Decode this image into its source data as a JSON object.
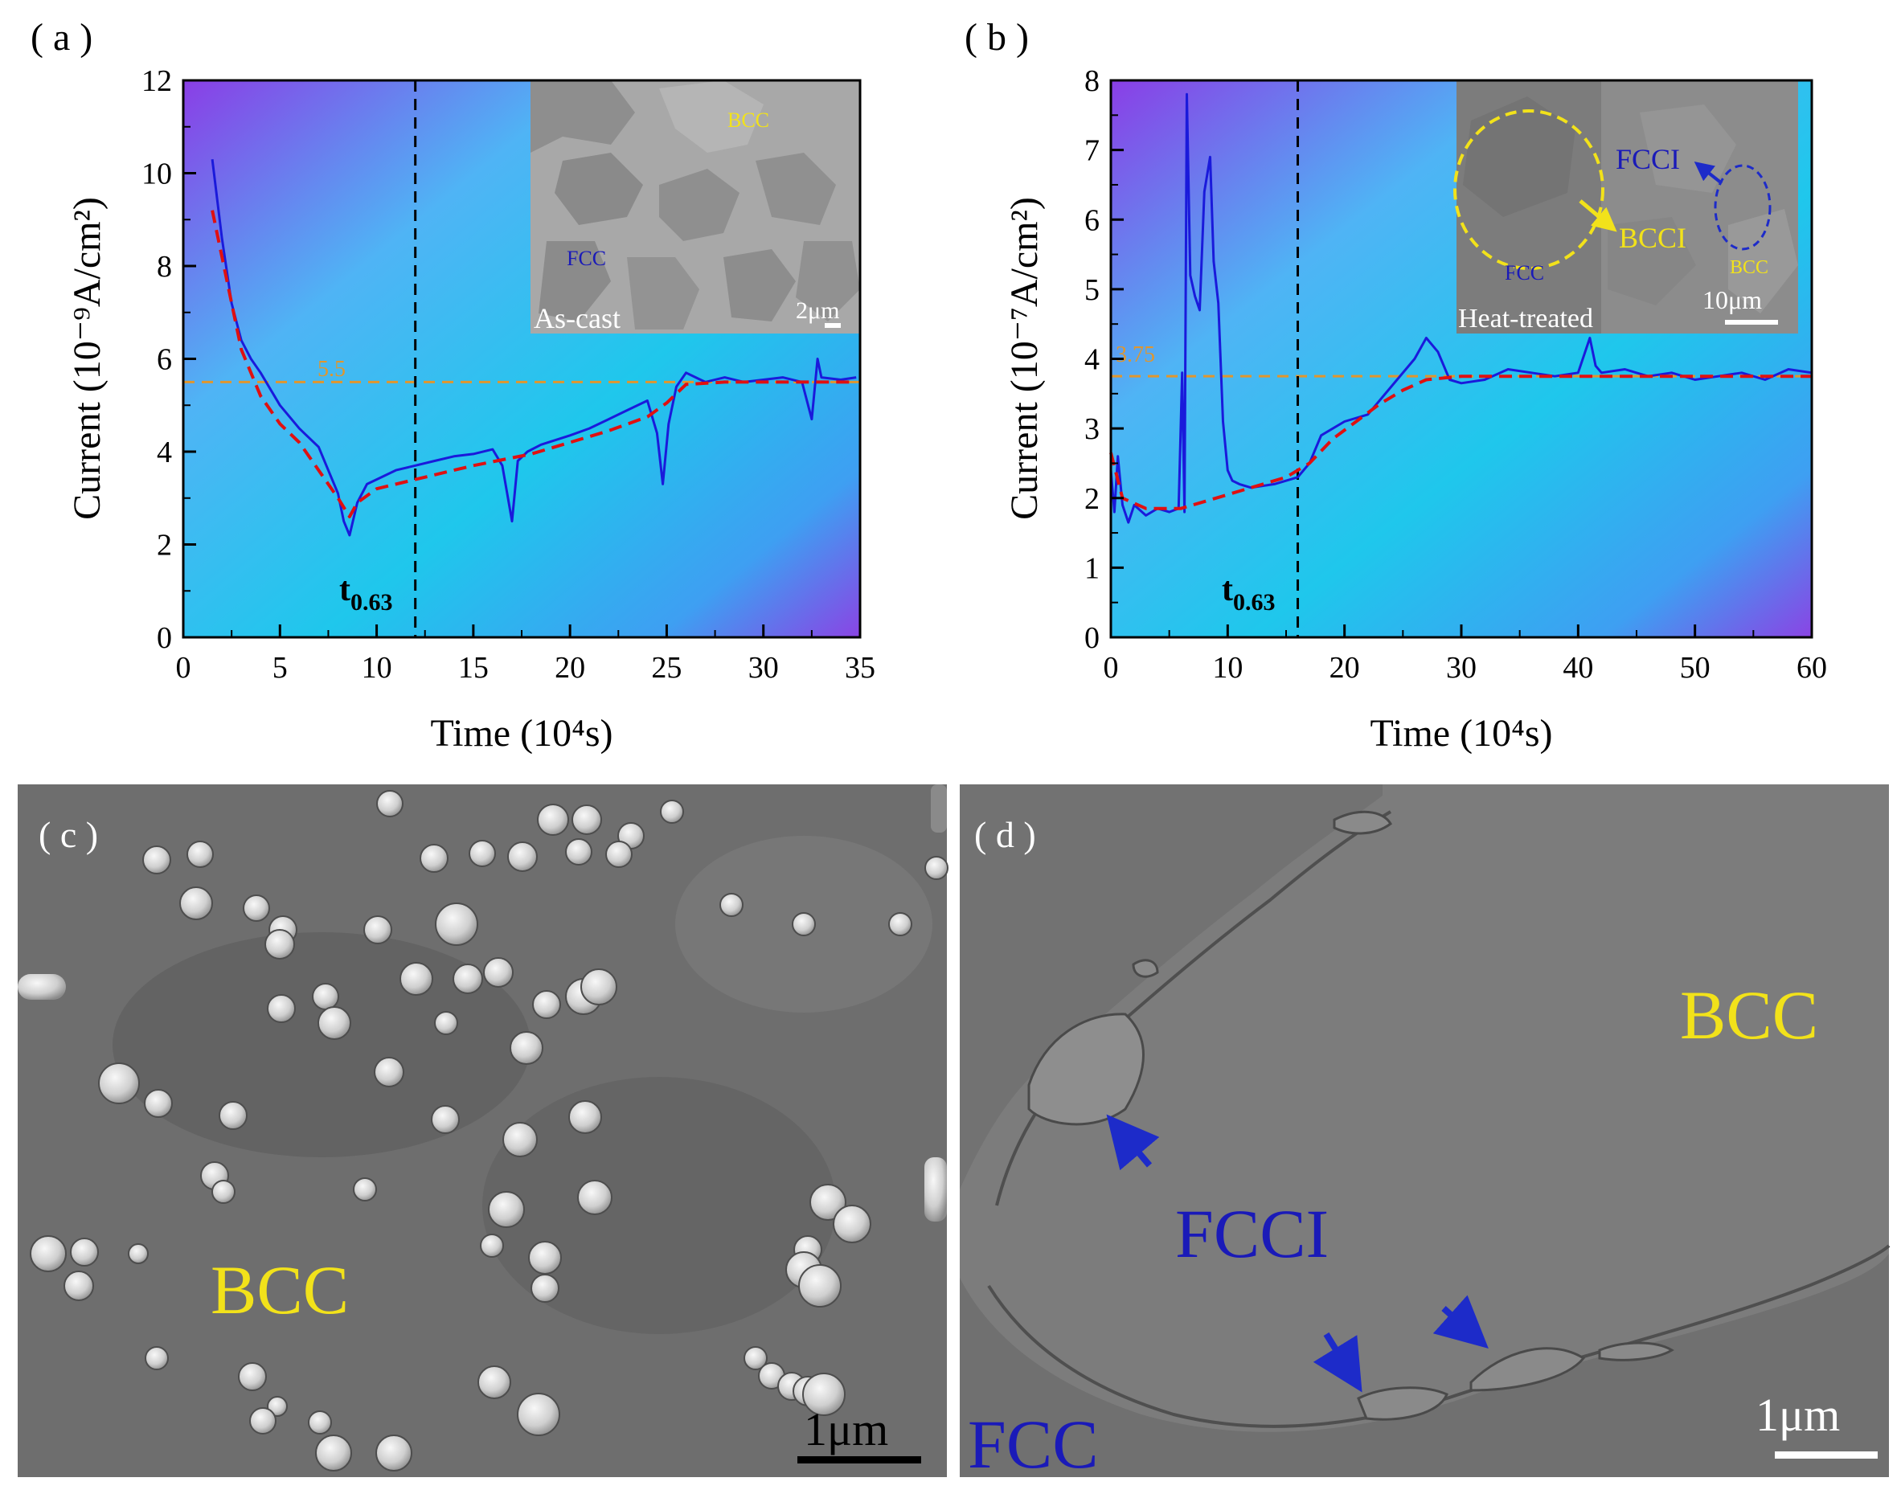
{
  "panels": {
    "a": {
      "label": "( a )"
    },
    "b": {
      "label": "( b )"
    },
    "c": {
      "label": "( c )",
      "phase": "BCC",
      "scale": "1μm"
    },
    "d": {
      "label": "( d )",
      "phase_bcc": "BCC",
      "phase_fcci": "FCCI",
      "phase_fcc": "FCC",
      "scale": "1μm"
    }
  },
  "inset_a": {
    "bcc": "BCC",
    "fcc": "FCC",
    "caption": "As-cast",
    "scale": "2μm"
  },
  "inset_b": {
    "fcci": "FCCI",
    "bcci": "BCCI",
    "fcc": "FCC",
    "bcc": "BCC",
    "caption": "Heat-treated",
    "scale": "10μm"
  },
  "colors": {
    "measured": "#1a1adb",
    "fit": "#e01010",
    "ref_line": "#e0962e",
    "bcc_label": "#f2e21a",
    "fcc_label": "#1a1ab8",
    "arrow": "#1d2bc9"
  },
  "chart_data": [
    {
      "type": "line",
      "panel": "a",
      "xlabel": "Time (10⁴s)",
      "ylabel": "Current (10⁻⁹A/cm²)",
      "xlim": [
        0,
        35
      ],
      "ylim": [
        0,
        12
      ],
      "xticks": [
        "0",
        "5",
        "10",
        "15",
        "20",
        "25",
        "30",
        "35"
      ],
      "yticks": [
        "0",
        "2",
        "4",
        "6",
        "8",
        "10",
        "12"
      ],
      "hline": {
        "y": 5.5,
        "label": "5.5"
      },
      "vline": {
        "x": 12,
        "label": "t0.63"
      },
      "series": [
        {
          "role": "measured",
          "x": [
            1.5,
            2,
            2.5,
            3,
            3.5,
            4,
            5,
            6,
            7,
            7.5,
            8,
            8.3,
            8.6,
            9,
            9.5,
            10,
            11,
            12,
            13,
            14,
            15,
            16,
            16.5,
            17,
            17.3,
            17.8,
            18.5,
            20,
            21,
            22,
            23,
            24,
            24.5,
            24.8,
            25.1,
            25.5,
            26,
            26.5,
            27,
            28,
            29,
            30,
            31,
            32,
            32.5,
            32.8,
            33,
            34,
            34.8
          ],
          "y": [
            10.3,
            8.6,
            7.2,
            6.4,
            6,
            5.7,
            5,
            4.5,
            4.1,
            3.6,
            3.1,
            2.5,
            2.2,
            2.9,
            3.3,
            3.4,
            3.6,
            3.7,
            3.8,
            3.9,
            3.95,
            4.05,
            3.7,
            2.5,
            3.8,
            4,
            4.15,
            4.35,
            4.5,
            4.7,
            4.9,
            5.1,
            4.4,
            3.3,
            4.6,
            5.4,
            5.7,
            5.6,
            5.5,
            5.6,
            5.5,
            5.55,
            5.6,
            5.5,
            4.7,
            6,
            5.6,
            5.55,
            5.6
          ]
        },
        {
          "role": "fit",
          "x": [
            1.5,
            2,
            3,
            4,
            5,
            6,
            7,
            8,
            8.6,
            9,
            10,
            12,
            15,
            18,
            20,
            22,
            24,
            25,
            26,
            28,
            30,
            32,
            34.8
          ],
          "y": [
            9.2,
            8.2,
            6.2,
            5.2,
            4.6,
            4.2,
            3.6,
            3,
            2.6,
            2.9,
            3.2,
            3.4,
            3.7,
            3.95,
            4.2,
            4.45,
            4.75,
            5.05,
            5.45,
            5.5,
            5.5,
            5.5,
            5.5
          ]
        }
      ]
    },
    {
      "type": "line",
      "panel": "b",
      "xlabel": "Time (10⁴s)",
      "ylabel": "Current (10⁻⁷A/cm²)",
      "xlim": [
        0,
        60
      ],
      "ylim": [
        0,
        8
      ],
      "xticks": [
        "0",
        "10",
        "20",
        "30",
        "40",
        "50",
        "60"
      ],
      "yticks": [
        "0",
        "1",
        "2",
        "3",
        "4",
        "5",
        "6",
        "7",
        "8"
      ],
      "hline": {
        "y": 3.75,
        "label": "3.75"
      },
      "vline": {
        "x": 16,
        "label": "t0.63"
      },
      "series": [
        {
          "role": "measured",
          "x": [
            0,
            0.3,
            0.6,
            1,
            1.5,
            2,
            3,
            4,
            5,
            5.8,
            6.1,
            6.3,
            6.5,
            6.8,
            7.2,
            7.6,
            8,
            8.5,
            8.8,
            9.2,
            9.6,
            10,
            10.4,
            11,
            12,
            14,
            16,
            17,
            18,
            20,
            22,
            24,
            26,
            27,
            28,
            29,
            30,
            32,
            34,
            36,
            38,
            40,
            41,
            41.5,
            42,
            44,
            46,
            48,
            50,
            52,
            54,
            56,
            58,
            60
          ],
          "y": [
            2.4,
            1.8,
            2.6,
            1.9,
            1.65,
            1.9,
            1.75,
            1.85,
            1.8,
            1.85,
            3.8,
            1.8,
            7.8,
            5.2,
            4.9,
            4.7,
            6.4,
            6.9,
            5.4,
            4.8,
            3.1,
            2.4,
            2.25,
            2.2,
            2.15,
            2.2,
            2.3,
            2.5,
            2.9,
            3.1,
            3.2,
            3.6,
            4,
            4.3,
            4.1,
            3.7,
            3.65,
            3.7,
            3.85,
            3.8,
            3.75,
            3.8,
            4.3,
            3.9,
            3.8,
            3.85,
            3.75,
            3.8,
            3.7,
            3.75,
            3.8,
            3.7,
            3.85,
            3.8
          ]
        },
        {
          "role": "fit",
          "x": [
            0,
            1,
            3,
            6,
            9,
            12,
            15,
            17,
            19,
            21,
            23,
            25,
            27,
            30,
            35,
            40,
            45,
            50,
            55,
            60
          ],
          "y": [
            2.65,
            2.0,
            1.85,
            1.85,
            2.0,
            2.15,
            2.3,
            2.5,
            2.85,
            3.1,
            3.35,
            3.55,
            3.7,
            3.75,
            3.75,
            3.75,
            3.75,
            3.75,
            3.75,
            3.75
          ]
        }
      ]
    }
  ]
}
